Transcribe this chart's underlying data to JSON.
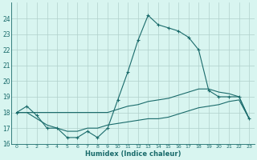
{
  "xlabel": "Humidex (Indice chaleur)",
  "x": [
    0,
    1,
    2,
    3,
    4,
    5,
    6,
    7,
    8,
    9,
    10,
    11,
    12,
    13,
    14,
    15,
    16,
    17,
    18,
    19,
    20,
    21,
    22,
    23
  ],
  "line_main": [
    18.0,
    18.4,
    17.8,
    17.0,
    17.0,
    16.4,
    16.4,
    16.8,
    16.4,
    17.0,
    18.8,
    20.6,
    22.6,
    24.2,
    23.6,
    23.4,
    23.2,
    22.8,
    22.0,
    19.4,
    19.0,
    19.0,
    19.0,
    17.6
  ],
  "line_upper": [
    18.0,
    18.0,
    18.0,
    18.0,
    18.0,
    18.0,
    18.0,
    18.0,
    18.0,
    18.0,
    18.2,
    18.4,
    18.5,
    18.7,
    18.8,
    18.9,
    19.1,
    19.3,
    19.5,
    19.5,
    19.3,
    19.2,
    19.0,
    17.6
  ],
  "line_lower": [
    18.0,
    18.0,
    17.6,
    17.2,
    17.0,
    16.8,
    16.8,
    17.0,
    17.0,
    17.2,
    17.3,
    17.4,
    17.5,
    17.6,
    17.6,
    17.7,
    17.9,
    18.1,
    18.3,
    18.4,
    18.5,
    18.7,
    18.8,
    17.6
  ],
  "color_main": "#1a6b6b",
  "bg_color": "#d8f5f0",
  "grid_color": "#b0d0cc",
  "ylim": [
    16,
    25
  ],
  "xlim": [
    -0.5,
    23.5
  ],
  "yticks": [
    16,
    17,
    18,
    19,
    20,
    21,
    22,
    23,
    24
  ],
  "xticks": [
    0,
    1,
    2,
    3,
    4,
    5,
    6,
    7,
    8,
    9,
    10,
    11,
    12,
    13,
    14,
    15,
    16,
    17,
    18,
    19,
    20,
    21,
    22,
    23
  ]
}
